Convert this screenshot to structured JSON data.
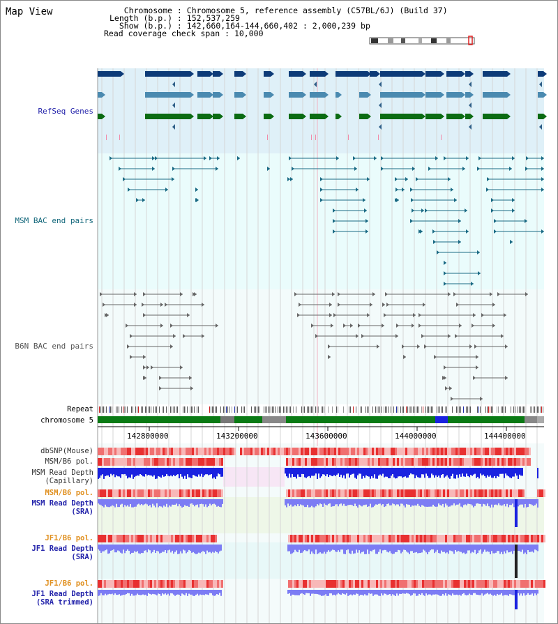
{
  "window": {
    "title": "Map View"
  },
  "info": {
    "chromosome_key": "Chromosome",
    "chromosome_value": "Chromosome 5, reference assembly (C57BL/6J) (Build 37)",
    "length_key": "Length (b.p.)",
    "length_value": "152,537,259",
    "show_key": "Show (b.p.)",
    "show_value": "142,660,164-144,660,402 : 2,000,239 bp",
    "coverage_key": "Read coverage check span",
    "coverage_value": "10,000"
  },
  "tracks": {
    "refseq": "RefSeq Genes",
    "msm_bac": "MSM BAC end pairs",
    "b6n_bac": "B6N BAC end pairs",
    "repeat": "Repeat",
    "chromosome": "chromosome 5",
    "dbsnp": "dbSNP(Mouse)",
    "msm_b6_pol": "MSM/B6 pol.",
    "msm_depth_cap_1": "MSM Read Depth",
    "msm_depth_cap_2": "(Capillary)",
    "msm_b6_pol_2": "MSM/B6 pol.",
    "msm_depth_sra_1": "MSM Read Depth",
    "msm_depth_sra_2": "(SRA)",
    "jf1_b6_pol": "JF1/B6 pol.",
    "jf1_depth_sra_1": "JF1 Read Depth",
    "jf1_depth_sra_2": "(SRA)",
    "jf1_b6_pol_2": "JF1/B6 pol.",
    "jf1_depth_trim_1": "JF1 Read Depth",
    "jf1_depth_trim_2": "(SRA trimmed)"
  },
  "axis": {
    "ticks": [
      "142800000",
      "143200000",
      "143600000",
      "144000000",
      "144400000"
    ]
  },
  "colors": {
    "refseq_bg": "#dff0f8",
    "msm_bg": "#eafcfc",
    "b6n_bg": "#f3fbfb",
    "gene_dark": "#0d3b78",
    "gene_mid": "#4a8ab0",
    "gene_green": "#0b6b12",
    "msm_pair": "#1a6a84",
    "b6n_pair": "#666666",
    "snp_red": "#ee3a3a",
    "depth_blue": "#1a22e0",
    "depth_light": "#7c7cf4",
    "label_blue": "#2222aa",
    "label_teal": "#11667a",
    "label_orange": "#e09020"
  }
}
